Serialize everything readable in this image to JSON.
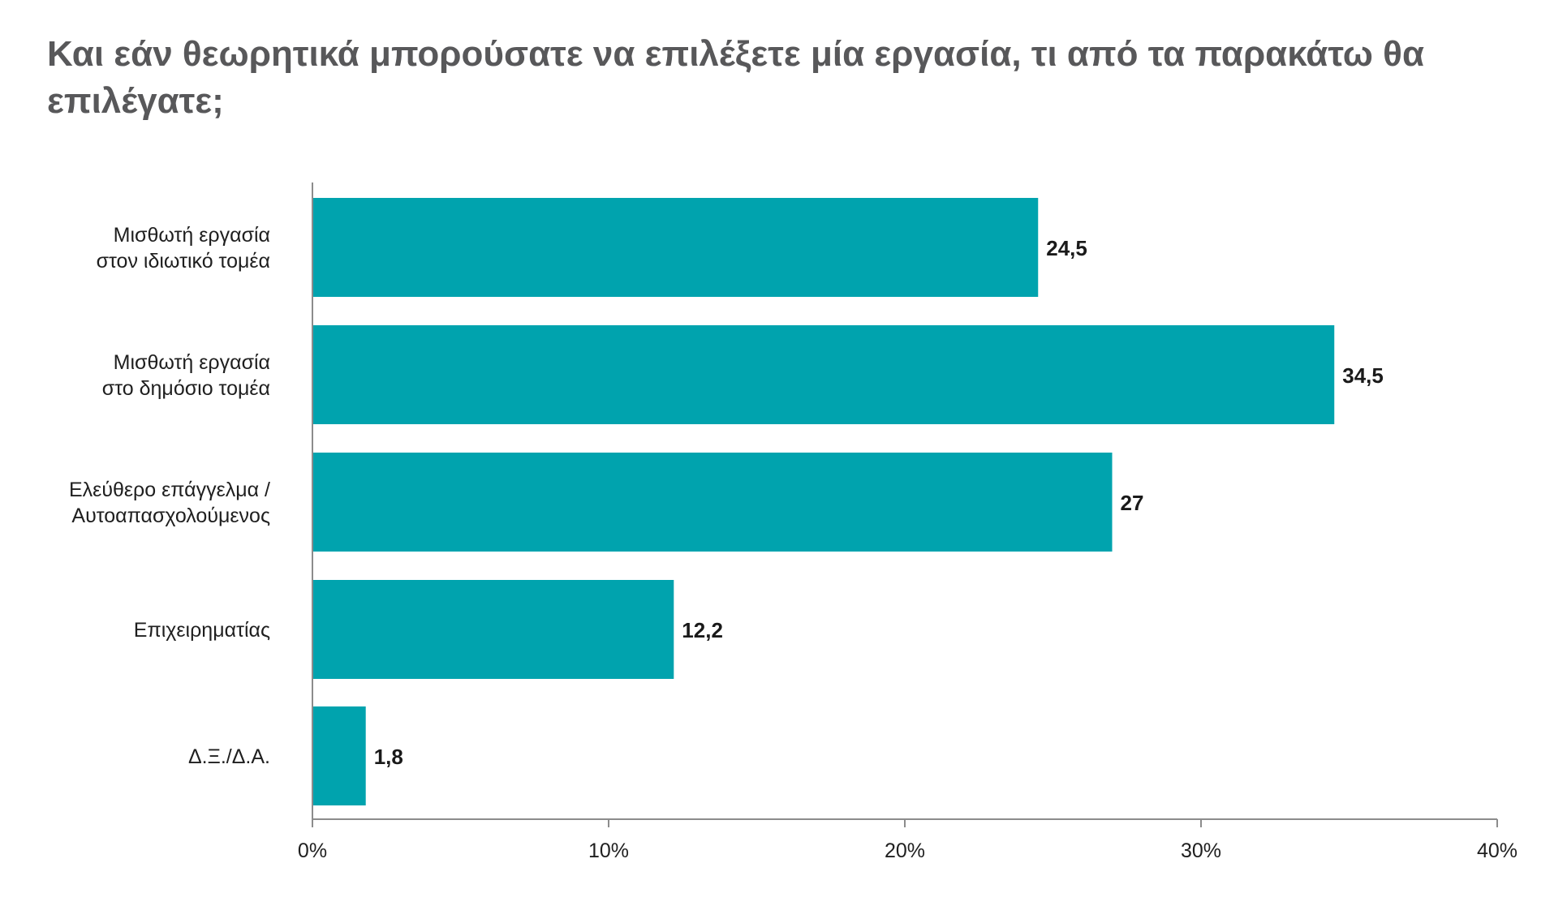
{
  "chart_data": {
    "type": "bar",
    "orientation": "horizontal",
    "title": "Και εάν θεωρητικά μπορούσατε να επιλέξετε μία εργασία, τι από τα παρακάτω θα επιλέγατε;",
    "categories": [
      [
        "Μισθωτή εργασία",
        "στον ιδιωτικό τομέα"
      ],
      [
        "Μισθωτή εργασία",
        "στο δημόσιο τομέα"
      ],
      [
        "Ελεύθερο επάγγελμα /",
        "Αυτοαπασχολούμενος"
      ],
      [
        "Επιχειρηματίας"
      ],
      [
        "Δ.Ξ./Δ.Α."
      ]
    ],
    "values": [
      24.5,
      34.5,
      27,
      12.2,
      1.8
    ],
    "data_labels": [
      "24,5",
      "34,5",
      "27",
      "12,2",
      "1,8"
    ],
    "xlim": [
      0,
      40
    ],
    "x_ticks": [
      0,
      10,
      20,
      30,
      40
    ],
    "x_tick_labels": [
      "0%",
      "10%",
      "20%",
      "30%",
      "40%"
    ],
    "xlabel": "",
    "ylabel": "",
    "grid": false,
    "legend": "none",
    "colors": {
      "bar": "#00a3ae",
      "axis": "#8c8c8c",
      "title": "#58585a",
      "text": "#1f1f1f"
    }
  }
}
